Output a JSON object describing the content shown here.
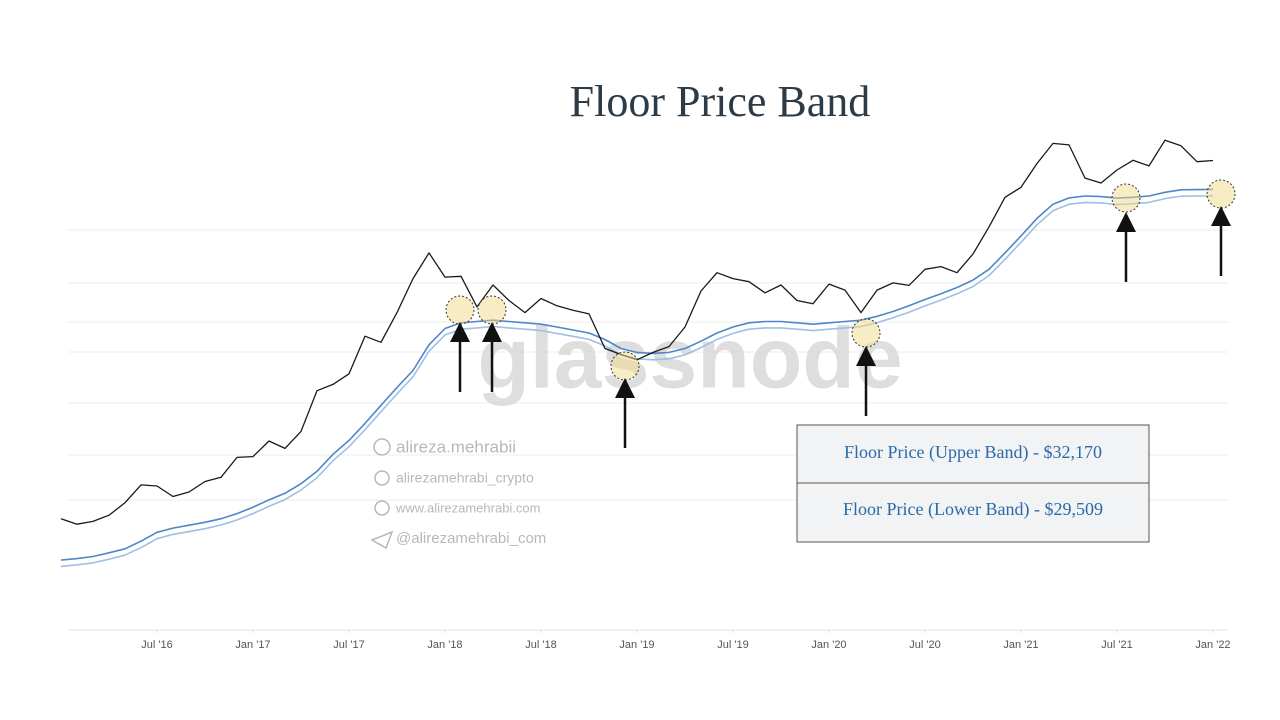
{
  "chart_data": {
    "type": "line",
    "title": "Floor Price Band",
    "x": [
      "2016-01",
      "2016-02",
      "2016-03",
      "2016-04",
      "2016-05",
      "2016-06",
      "2016-07",
      "2016-08",
      "2016-09",
      "2016-10",
      "2016-11",
      "2016-12",
      "2017-01",
      "2017-02",
      "2017-03",
      "2017-04",
      "2017-05",
      "2017-06",
      "2017-07",
      "2017-08",
      "2017-09",
      "2017-10",
      "2017-11",
      "2017-12",
      "2018-01",
      "2018-02",
      "2018-03",
      "2018-04",
      "2018-05",
      "2018-06",
      "2018-07",
      "2018-08",
      "2018-09",
      "2018-10",
      "2018-11",
      "2018-12",
      "2019-01",
      "2019-02",
      "2019-03",
      "2019-04",
      "2019-05",
      "2019-06",
      "2019-07",
      "2019-08",
      "2019-09",
      "2019-10",
      "2019-11",
      "2019-12",
      "2020-01",
      "2020-02",
      "2020-03",
      "2020-04",
      "2020-05",
      "2020-06",
      "2020-07",
      "2020-08",
      "2020-09",
      "2020-10",
      "2020-11",
      "2020-12",
      "2021-01",
      "2021-02",
      "2021-03",
      "2021-04",
      "2021-05",
      "2021-06",
      "2021-07",
      "2021-08",
      "2021-09",
      "2021-10",
      "2021-11",
      "2021-12",
      "2022-01"
    ],
    "series": [
      {
        "color": "#1a1a1a",
        "values": [
          430,
          400,
          415,
          450,
          530,
          670,
          660,
          575,
          610,
          700,
          740,
          960,
          970,
          1190,
          1080,
          1350,
          2300,
          2500,
          2870,
          4700,
          4340,
          6400,
          10000,
          14000,
          10200,
          10300,
          6900,
          9200,
          7500,
          6400,
          7700,
          7000,
          6600,
          6300,
          4000,
          3700,
          3450,
          3800,
          4100,
          5300,
          8500,
          10800,
          10000,
          9600,
          8300,
          9200,
          7500,
          7200,
          9300,
          8600,
          6400,
          8600,
          9450,
          9150,
          11300,
          11700,
          10800,
          13800,
          19700,
          29000,
          33100,
          45200,
          58800,
          57700,
          37300,
          35000,
          41500,
          47100,
          43800,
          61300,
          57000,
          46300,
          47000
        ]
      },
      {
        "color": "#4f86c9",
        "values": [
          250,
          255,
          262,
          275,
          290,
          320,
          360,
          380,
          395,
          410,
          430,
          460,
          500,
          550,
          600,
          680,
          800,
          1000,
          1200,
          1500,
          1900,
          2400,
          3000,
          4200,
          5200,
          5600,
          5700,
          5800,
          5700,
          5600,
          5500,
          5300,
          5100,
          4900,
          4500,
          4000,
          3800,
          3750,
          3800,
          4000,
          4400,
          4900,
          5300,
          5600,
          5700,
          5700,
          5600,
          5500,
          5600,
          5700,
          5800,
          6100,
          6500,
          7000,
          7600,
          8200,
          8900,
          9800,
          11300,
          14000,
          17500,
          22000,
          26500,
          28800,
          29500,
          29300,
          28700,
          29000,
          29500,
          31000,
          32000,
          32100,
          32170
        ]
      },
      {
        "color": "#9cc0e6",
        "values": [
          230,
          235,
          241,
          253,
          267,
          294,
          331,
          350,
          363,
          377,
          396,
          423,
          460,
          506,
          552,
          626,
          736,
          920,
          1104,
          1380,
          1748,
          2208,
          2760,
          3864,
          4784,
          5152,
          5244,
          5336,
          5244,
          5152,
          5060,
          4876,
          4692,
          4508,
          4140,
          3680,
          3496,
          3450,
          3496,
          3680,
          4048,
          4508,
          4876,
          5152,
          5244,
          5244,
          5152,
          5060,
          5152,
          5244,
          5336,
          5612,
          5980,
          6440,
          6992,
          7544,
          8188,
          9016,
          10396,
          12880,
          16100,
          20240,
          24380,
          26496,
          27140,
          26956,
          26404,
          26680,
          27140,
          28520,
          29440,
          29532,
          29509
        ]
      }
    ],
    "xlim": [
      "2016-01",
      "2022-02"
    ],
    "xticks": [
      {
        "value": "2016-07",
        "label": "Jul '16"
      },
      {
        "value": "2017-01",
        "label": "Jan '17"
      },
      {
        "value": "2017-07",
        "label": "Jul '17"
      },
      {
        "value": "2018-01",
        "label": "Jan '18"
      },
      {
        "value": "2018-07",
        "label": "Jul '18"
      },
      {
        "value": "2019-01",
        "label": "Jan '19"
      },
      {
        "value": "2019-07",
        "label": "Jul '19"
      },
      {
        "value": "2020-01",
        "label": "Jan '20"
      },
      {
        "value": "2020-07",
        "label": "Jul '20"
      },
      {
        "value": "2021-01",
        "label": "Jan '21"
      },
      {
        "value": "2021-07",
        "label": "Jul '21"
      },
      {
        "value": "2022-01",
        "label": "Jan '22"
      }
    ],
    "ylim": [
      100,
      200000
    ],
    "log_scale": true,
    "annotations": [
      "Floor Price (Upper Band) - $32,170",
      "Floor Price (Lower Band) - $29,509"
    ],
    "watermarks": [
      "glassnode",
      "alireza.mehrabii",
      "alirezamehrabi_crypto",
      "www.alirezamehrabi.com",
      "@alirezamehrabi_com"
    ]
  }
}
